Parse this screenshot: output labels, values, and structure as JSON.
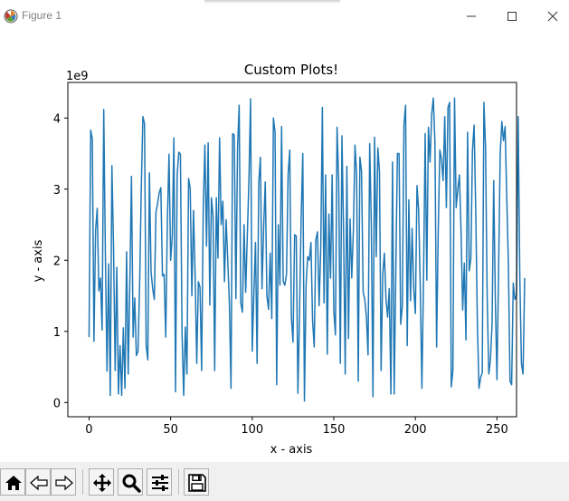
{
  "window": {
    "title": "Figure 1",
    "icons": {
      "app": "matplotlib-logo-icon",
      "minimize": "minimize-icon",
      "maximize": "maximize-icon",
      "close": "close-icon"
    }
  },
  "toolbar": {
    "buttons": [
      {
        "name": "home-button",
        "icon": "home-icon"
      },
      {
        "name": "back-button",
        "icon": "arrow-left-icon"
      },
      {
        "name": "forward-button",
        "icon": "arrow-right-icon"
      },
      {
        "name": "pan-button",
        "icon": "move-icon"
      },
      {
        "name": "zoom-button",
        "icon": "magnifier-icon"
      },
      {
        "name": "configure-subplots-button",
        "icon": "sliders-icon"
      },
      {
        "name": "save-button",
        "icon": "floppy-disk-icon"
      }
    ]
  },
  "chart_data": {
    "type": "line",
    "title": "Custom Plots!",
    "xlabel": "x - axis",
    "ylabel": "y - axis",
    "y_offset_label": "1e9",
    "xlim": [
      -13,
      262
    ],
    "ylim": [
      -0.2,
      4.5
    ],
    "x_ticks": [
      0,
      50,
      100,
      150,
      200,
      250
    ],
    "y_ticks": [
      0,
      1,
      2,
      3,
      4
    ],
    "grid": false,
    "series_color": "#1f77b4",
    "series": [
      {
        "x_start": 0,
        "x_step": 1,
        "values": [
          0.92,
          3.83,
          3.71,
          0.86,
          2.42,
          2.73,
          1.57,
          1.75,
          1.02,
          4.12,
          2.1,
          0.44,
          1.95,
          0.1,
          3.33,
          2.2,
          0.45,
          1.9,
          0.12,
          0.8,
          0.1,
          1.05,
          0.2,
          2.12,
          0.4,
          1.7,
          3.18,
          0.92,
          1.47,
          0.66,
          0.72,
          1.66,
          3.0,
          4.02,
          3.92,
          0.8,
          0.6,
          3.23,
          1.84,
          1.6,
          1.45,
          2.67,
          2.8,
          2.95,
          3.02,
          1.78,
          1.8,
          0.92,
          2.55,
          3.49,
          2.0,
          2.33,
          3.72,
          0.15,
          3.2,
          3.52,
          3.49,
          0.95,
          0.1,
          1.06,
          0.4,
          3.15,
          3.01,
          1.5,
          2.7,
          1.8,
          0.55,
          1.7,
          1.62,
          0.45,
          2.75,
          3.62,
          2.2,
          3.65,
          1.37,
          2.88,
          2.62,
          0.45,
          2.88,
          2.03,
          3.72,
          2.5,
          2.83,
          1.7,
          2.57,
          2.0,
          1.4,
          0.2,
          3.78,
          3.76,
          1.46,
          3.57,
          4.18,
          1.4,
          1.27,
          2.5,
          1.55,
          2.35,
          3.13,
          4.27,
          0.72,
          1.52,
          2.25,
          0.55,
          3.08,
          3.45,
          1.6,
          2.46,
          3.1,
          1.5,
          1.31,
          2.1,
          1.18,
          4.0,
          3.8,
          0.25,
          2.5,
          1.65,
          3.88,
          1.7,
          1.65,
          1.8,
          3.2,
          3.55,
          1.2,
          0.85,
          2.36,
          2.34,
          0.13,
          1.26,
          2.6,
          3.5,
          0.02,
          1.65,
          2.05,
          2.0,
          2.25,
          1.15,
          0.78,
          2.29,
          2.4,
          1.36,
          2.15,
          4.15,
          1.4,
          3.2,
          0.68,
          2.65,
          1.75,
          3.2,
          1.3,
          0.95,
          3.87,
          3.12,
          0.55,
          3.75,
          2.4,
          0.4,
          3.32,
          0.9,
          2.58,
          1.75,
          2.42,
          3.62,
          3.2,
          0.3,
          3.45,
          3.25,
          1.55,
          1.45,
          1.2,
          0.67,
          3.64,
          2.5,
          0.08,
          3.73,
          2.05,
          3.58,
          3.25,
          0.45,
          1.8,
          2.1,
          1.45,
          1.2,
          1.6,
          0.12,
          3.38,
          0.12,
          1.82,
          3.5,
          3.5,
          1.1,
          1.35,
          3.9,
          4.18,
          0.8,
          2.85,
          1.43,
          2.45,
          1.6,
          1.25,
          3.05,
          2.7,
          1.62,
          0.2,
          1.73,
          3.78,
          1.72,
          3.87,
          3.38,
          4.05,
          4.28,
          3.65,
          0.78,
          2.4,
          3.55,
          3.42,
          3.12,
          4.02,
          2.74,
          4.15,
          4.22,
          0.22,
          0.45,
          4.28,
          2.74,
          3.0,
          3.2,
          2.4,
          1.3,
          1.96,
          0.88,
          3.8,
          1.85,
          2.02,
          3.55,
          3.9,
          2.7,
          1.12,
          0.2,
          0.35,
          0.42,
          4.22,
          3.6,
          1.5,
          0.4,
          0.6,
          1.1,
          3.12,
          1.45,
          0.32,
          1.85,
          3.5,
          3.95,
          3.68,
          3.88,
          2.9,
          1.95,
          0.3,
          0.25,
          1.68,
          1.45,
          1.5,
          4.02,
          1.78,
          0.55,
          0.4,
          1.75
        ]
      }
    ]
  }
}
